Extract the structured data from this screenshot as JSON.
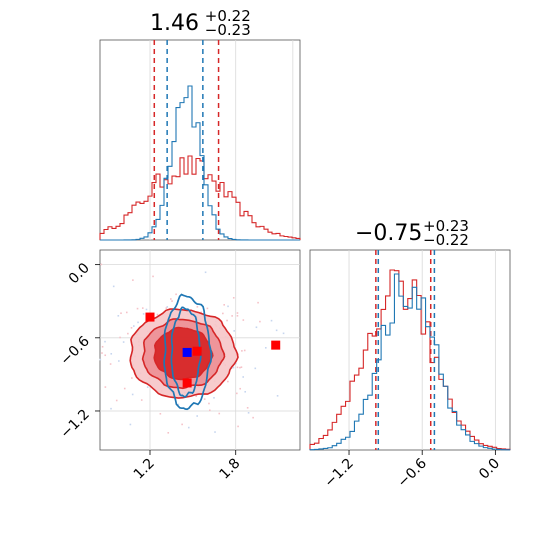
{
  "chart_data": {
    "type": "corner",
    "parameters": [
      "x",
      "y"
    ],
    "titles": [
      {
        "value": "1.46",
        "plus": "+0.22",
        "minus": "−0.23"
      },
      {
        "value": "−0.75",
        "plus": "+0.23",
        "minus": "−0.22"
      }
    ],
    "x_range": [
      0.85,
      2.25
    ],
    "y_range": [
      -1.52,
      0.12
    ],
    "x_ticks": [
      {
        "value": 1.2,
        "label": "1.2"
      },
      {
        "value": 1.8,
        "label": "1.8"
      }
    ],
    "y_ticks_left": [
      {
        "value": 0.0,
        "label": "0.0"
      },
      {
        "value": -0.6,
        "label": "−0.6"
      },
      {
        "value": -1.2,
        "label": "−1.2"
      }
    ],
    "y_ticks_bottom": [
      {
        "value": -1.2,
        "label": "−1.2"
      },
      {
        "value": -0.6,
        "label": "−0.6"
      },
      {
        "value": 0.0,
        "label": "0.0"
      }
    ],
    "series": [
      {
        "color": "#d62728",
        "hist_x": {
          "mean": 1.46,
          "sd": 0.28,
          "quantiles": [
            1.23,
            1.68
          ]
        },
        "hist_y": {
          "mean": -0.79,
          "sd": 0.27,
          "quantiles": [
            -0.98,
            -0.53
          ]
        }
      },
      {
        "color": "#1f77b4",
        "hist_x": {
          "mean": 1.45,
          "sd": 0.1,
          "quantiles": [
            1.32,
            1.57
          ]
        },
        "hist_y": {
          "mean": -0.72,
          "sd": 0.22,
          "quantiles": [
            -0.96,
            -0.5
          ]
        }
      }
    ],
    "contours_red": [
      {
        "cx": 1.43,
        "cy": -0.73,
        "rx": 0.37,
        "ry": 0.36
      },
      {
        "cx": 1.43,
        "cy": -0.73,
        "rx": 0.28,
        "ry": 0.28
      },
      {
        "cx": 1.43,
        "cy": -0.73,
        "rx": 0.2,
        "ry": 0.21
      }
    ],
    "contours_blue": [
      {
        "cx": 1.45,
        "cy": -0.72,
        "rx": 0.1,
        "ry": 0.36
      },
      {
        "cx": 1.46,
        "cy": -0.72,
        "rx": 0.16,
        "ry": 0.46
      }
    ],
    "markers": [
      {
        "x": 1.46,
        "y": -0.72,
        "color": "#0000ff"
      },
      {
        "x": 1.2,
        "y": -0.43,
        "color": "#ff0000"
      },
      {
        "x": 1.53,
        "y": -0.71,
        "color": "#ff0000"
      },
      {
        "x": 1.46,
        "y": -0.97,
        "color": "#ff0000"
      },
      {
        "x": 2.08,
        "y": -0.66,
        "color": "#ff0000"
      }
    ],
    "grid": true,
    "legend": "none"
  }
}
